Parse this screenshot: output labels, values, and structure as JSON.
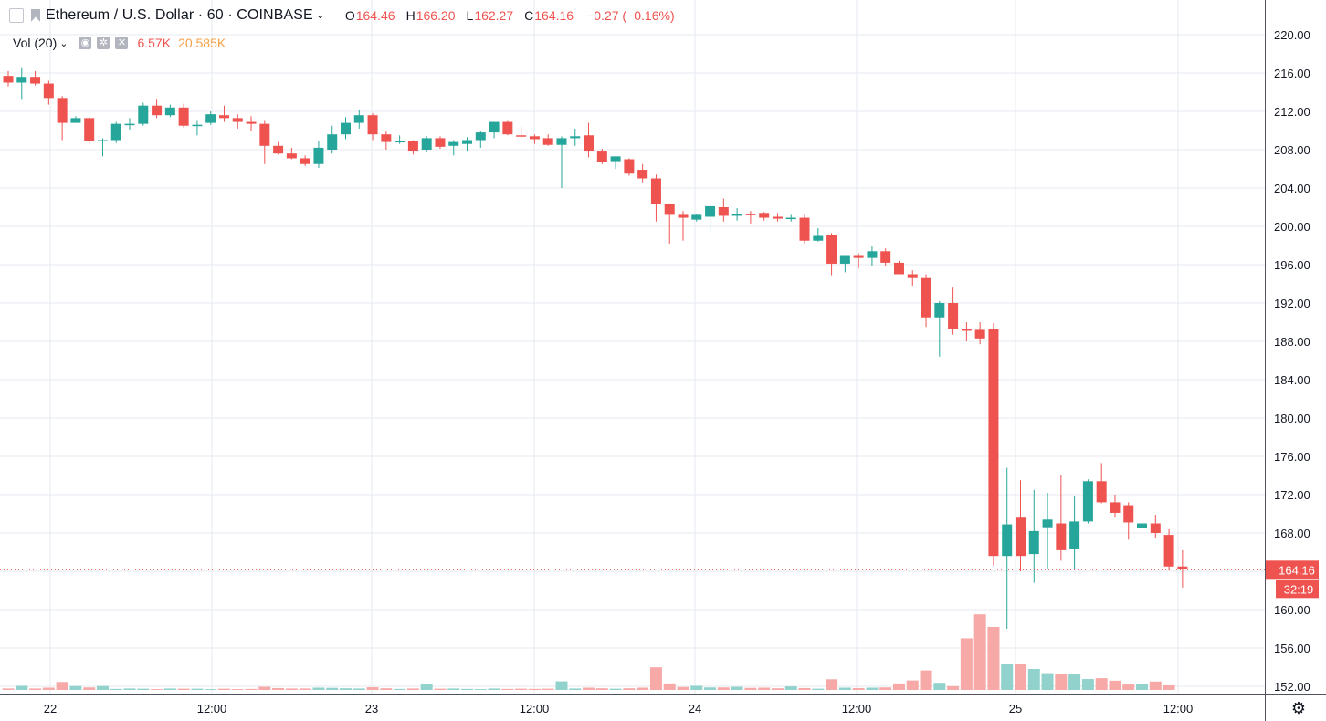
{
  "header": {
    "title": "Ethereum / U.S. Dollar · 60 · COINBASE",
    "open_label": "O",
    "open": "164.46",
    "high_label": "H",
    "high": "166.20",
    "low_label": "L",
    "low": "162.27",
    "close_label": "C",
    "close": "164.16",
    "change": "−0.27 (−0.16%)"
  },
  "volume_indicator": {
    "label": "Vol (20)",
    "value": "6.57K",
    "ma_value": "20.585K"
  },
  "price_marker": {
    "price": "164.16",
    "countdown": "32:19"
  },
  "colors": {
    "up": "#26a69a",
    "down": "#ef5350",
    "up_vol": "#92d2cc",
    "down_vol": "#f7a9a7",
    "grid": "#e6eaef",
    "axis_text": "#131722",
    "ma": "#f5a14b"
  },
  "icons": [
    "flag-icon",
    "eye-icon",
    "gear-icon",
    "close-icon",
    "chevron-down-icon"
  ],
  "chart_data": {
    "type": "candlestick",
    "symbol": "Ethereum / U.S. Dollar",
    "interval": "60",
    "exchange": "COINBASE",
    "y_ticks": [
      "220.00",
      "216.00",
      "212.00",
      "208.00",
      "204.00",
      "200.00",
      "196.00",
      "192.00",
      "188.00",
      "184.00",
      "180.00",
      "176.00",
      "172.00",
      "168.00",
      "164.00",
      "160.00",
      "156.00",
      "152.00"
    ],
    "x_tick_labels": [
      "22",
      "12:00",
      "23",
      "12:00",
      "24",
      "12:00",
      "25",
      "12:00"
    ],
    "ylim": [
      151.5,
      225.5
    ],
    "grid": true,
    "candles": [
      [
        215.7,
        216.2,
        214.6,
        215.0
      ],
      [
        215.0,
        216.6,
        213.2,
        215.6
      ],
      [
        215.6,
        216.2,
        214.7,
        214.9
      ],
      [
        214.9,
        215.2,
        212.7,
        213.4
      ],
      [
        213.4,
        213.6,
        209.0,
        210.8
      ],
      [
        210.8,
        211.5,
        210.8,
        211.3
      ],
      [
        211.3,
        211.4,
        208.6,
        208.9
      ],
      [
        208.9,
        209.2,
        207.3,
        209.0
      ],
      [
        209.0,
        210.9,
        208.7,
        210.7
      ],
      [
        210.6,
        211.3,
        210.1,
        210.7
      ],
      [
        210.7,
        212.9,
        210.5,
        212.6
      ],
      [
        212.6,
        213.2,
        211.3,
        211.6
      ],
      [
        211.6,
        212.7,
        211.4,
        212.4
      ],
      [
        212.4,
        212.8,
        210.3,
        210.5
      ],
      [
        210.5,
        211.0,
        209.5,
        210.6
      ],
      [
        210.8,
        212.0,
        210.6,
        211.7
      ],
      [
        211.6,
        212.6,
        210.9,
        211.3
      ],
      [
        211.3,
        211.7,
        210.2,
        210.9
      ],
      [
        210.9,
        211.5,
        209.9,
        210.7
      ],
      [
        210.7,
        211.0,
        206.5,
        208.4
      ],
      [
        208.4,
        208.8,
        207.5,
        207.6
      ],
      [
        207.6,
        208.2,
        207.0,
        207.1
      ],
      [
        207.1,
        207.4,
        206.3,
        206.5
      ],
      [
        206.5,
        208.9,
        206.1,
        208.2
      ],
      [
        208.0,
        210.5,
        207.6,
        209.6
      ],
      [
        209.6,
        211.4,
        209.1,
        210.8
      ],
      [
        210.8,
        212.2,
        210.2,
        211.6
      ],
      [
        211.6,
        211.8,
        209.0,
        209.6
      ],
      [
        209.6,
        209.9,
        208.0,
        208.8
      ],
      [
        208.8,
        209.5,
        208.6,
        208.9
      ],
      [
        208.9,
        209.0,
        207.5,
        207.9
      ],
      [
        208.0,
        209.4,
        207.8,
        209.2
      ],
      [
        209.2,
        209.4,
        208.1,
        208.3
      ],
      [
        208.4,
        209.0,
        207.4,
        208.8
      ],
      [
        208.6,
        209.3,
        207.9,
        209.0
      ],
      [
        209.0,
        210.0,
        208.2,
        209.8
      ],
      [
        209.8,
        210.8,
        209.2,
        210.9
      ],
      [
        210.9,
        211.0,
        209.5,
        209.6
      ],
      [
        209.5,
        210.4,
        209.2,
        209.4
      ],
      [
        209.4,
        209.6,
        208.6,
        209.1
      ],
      [
        209.2,
        209.6,
        208.4,
        208.5
      ],
      [
        208.5,
        209.4,
        204.0,
        209.2
      ],
      [
        209.2,
        210.2,
        208.4,
        209.4
      ],
      [
        209.5,
        210.8,
        207.2,
        207.9
      ],
      [
        207.9,
        208.1,
        206.5,
        206.7
      ],
      [
        206.8,
        207.3,
        206.0,
        207.3
      ],
      [
        207.0,
        207.1,
        205.3,
        205.5
      ],
      [
        205.9,
        206.5,
        204.6,
        205.0
      ],
      [
        205.0,
        205.4,
        200.5,
        202.3
      ],
      [
        202.3,
        202.4,
        198.2,
        201.2
      ],
      [
        201.2,
        201.6,
        198.5,
        200.9
      ],
      [
        200.7,
        201.3,
        200.5,
        201.2
      ],
      [
        201.0,
        202.4,
        199.4,
        202.1
      ],
      [
        202.0,
        202.9,
        200.5,
        201.1
      ],
      [
        201.1,
        201.9,
        200.6,
        201.3
      ],
      [
        201.3,
        201.6,
        200.3,
        201.2
      ],
      [
        201.4,
        201.5,
        200.6,
        200.9
      ],
      [
        201.0,
        201.4,
        200.5,
        200.8
      ],
      [
        200.8,
        201.2,
        200.5,
        200.9
      ],
      [
        200.9,
        201.2,
        198.2,
        198.5
      ],
      [
        198.5,
        199.8,
        198.4,
        199.0
      ],
      [
        199.1,
        199.3,
        194.9,
        196.1
      ],
      [
        196.1,
        197.0,
        195.2,
        197.0
      ],
      [
        197.0,
        197.2,
        195.6,
        196.7
      ],
      [
        196.7,
        197.9,
        195.9,
        197.4
      ],
      [
        197.4,
        197.7,
        195.9,
        196.2
      ],
      [
        196.2,
        196.4,
        195.2,
        195.0
      ],
      [
        195.0,
        195.4,
        193.8,
        194.6
      ],
      [
        194.6,
        195.0,
        189.5,
        190.5
      ],
      [
        190.5,
        192.2,
        186.4,
        192.0
      ],
      [
        192.0,
        193.6,
        188.7,
        189.3
      ],
      [
        189.3,
        190.0,
        188.0,
        189.1
      ],
      [
        189.2,
        190.0,
        187.7,
        188.3
      ],
      [
        189.3,
        189.9,
        164.6,
        165.6
      ],
      [
        165.6,
        174.8,
        158.0,
        168.9
      ],
      [
        169.6,
        173.5,
        164.0,
        165.6
      ],
      [
        165.8,
        172.5,
        162.8,
        168.2
      ],
      [
        168.6,
        172.2,
        164.2,
        169.4
      ],
      [
        169.0,
        174.0,
        165.1,
        166.2
      ],
      [
        166.3,
        171.8,
        164.2,
        169.2
      ],
      [
        169.2,
        173.6,
        169.0,
        173.4
      ],
      [
        173.4,
        175.3,
        171.1,
        171.2
      ],
      [
        171.2,
        172.0,
        169.6,
        170.1
      ],
      [
        170.9,
        171.2,
        167.3,
        169.1
      ],
      [
        168.5,
        169.3,
        168.0,
        169.0
      ],
      [
        169.0,
        169.9,
        167.5,
        168.0
      ],
      [
        167.8,
        168.4,
        164.1,
        164.5
      ],
      [
        164.5,
        166.2,
        162.3,
        164.2
      ]
    ],
    "volumes": [
      0.35,
      1.0,
      0.35,
      0.55,
      1.9,
      0.95,
      0.6,
      0.95,
      0.25,
      0.35,
      0.3,
      0.2,
      0.35,
      0.3,
      0.3,
      0.2,
      0.3,
      0.2,
      0.25,
      0.75,
      0.45,
      0.35,
      0.35,
      0.55,
      0.5,
      0.4,
      0.35,
      0.65,
      0.4,
      0.25,
      0.35,
      1.3,
      0.3,
      0.35,
      0.25,
      0.2,
      0.35,
      0.25,
      0.3,
      0.25,
      0.3,
      2.05,
      0.35,
      0.55,
      0.4,
      0.3,
      0.4,
      0.55,
      5.4,
      1.55,
      0.7,
      1.0,
      0.6,
      0.6,
      0.75,
      0.5,
      0.55,
      0.4,
      0.85,
      0.45,
      0.3,
      2.55,
      0.55,
      0.45,
      0.55,
      0.6,
      1.55,
      2.25,
      4.65,
      1.7,
      0.9,
      12.3,
      18.0,
      15.0,
      6.3,
      6.3,
      5.0,
      4.0,
      3.9,
      3.9,
      2.6,
      2.8,
      2.2,
      1.3,
      1.4,
      2.0,
      1.1
    ],
    "volume_max": 20,
    "last_price": 164.16,
    "volume_ma": null
  }
}
